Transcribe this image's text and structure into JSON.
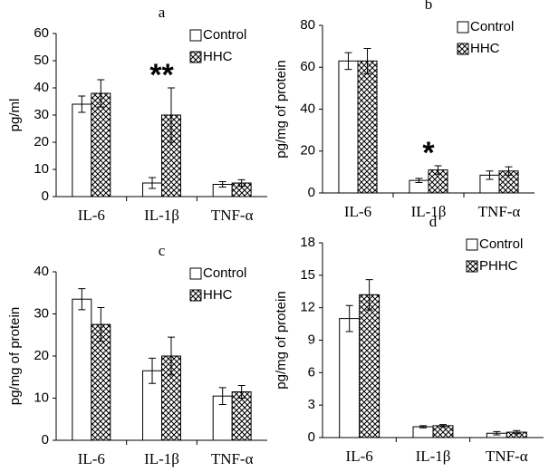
{
  "chart_data": [
    {
      "type": "bar",
      "title": "a",
      "y_label": "pg/ml",
      "categories": [
        "IL-6",
        "IL-1β",
        "TNF-α"
      ],
      "series": [
        {
          "name": "Control",
          "color": "#ffffff",
          "values": [
            34,
            5,
            4.5
          ],
          "errors": [
            3,
            2,
            1
          ]
        },
        {
          "name": "HHC",
          "color": "#ffffff",
          "pattern": "crosshatch",
          "values": [
            38,
            30,
            5
          ],
          "errors": [
            5,
            10,
            1.2
          ]
        }
      ],
      "ylim": [
        0,
        60
      ],
      "yticks": [
        0,
        10,
        20,
        30,
        40,
        50,
        60
      ],
      "annotations": [
        {
          "text": "**",
          "category": "IL-1β"
        }
      ]
    },
    {
      "type": "bar",
      "title": "b",
      "y_label": "pg/mg of protein",
      "categories": [
        "IL-6",
        "IL-1β",
        "TNF-α"
      ],
      "series": [
        {
          "name": "Control",
          "color": "#ffffff",
          "values": [
            63,
            6,
            8.5
          ],
          "errors": [
            4,
            1,
            2
          ]
        },
        {
          "name": "HHC",
          "color": "#ffffff",
          "pattern": "crosshatch",
          "values": [
            63,
            11,
            10.5
          ],
          "errors": [
            6,
            2,
            2
          ]
        }
      ],
      "ylim": [
        0,
        80
      ],
      "yticks": [
        0,
        20,
        40,
        60,
        80
      ],
      "annotations": [
        {
          "text": "*",
          "category": "IL-1β"
        }
      ]
    },
    {
      "type": "bar",
      "title": "c",
      "y_label": "pg/mg of protein",
      "categories": [
        "IL-6",
        "IL-1β",
        "TNF-α"
      ],
      "series": [
        {
          "name": "Control",
          "color": "#ffffff",
          "values": [
            33.5,
            16.5,
            10.5
          ],
          "errors": [
            2.5,
            3,
            2
          ]
        },
        {
          "name": "HHC",
          "color": "#ffffff",
          "pattern": "crosshatch",
          "values": [
            27.5,
            20,
            11.5
          ],
          "errors": [
            4,
            4.5,
            1.5
          ]
        }
      ],
      "ylim": [
        0,
        40
      ],
      "yticks": [
        0,
        10,
        20,
        30,
        40
      ]
    },
    {
      "type": "bar",
      "title": "d",
      "y_label": "pg/mg of protein",
      "categories": [
        "IL-6",
        "IL-1β",
        "TNF-α"
      ],
      "series": [
        {
          "name": "Control",
          "color": "#ffffff",
          "values": [
            11,
            1,
            0.4
          ],
          "errors": [
            1.2,
            0.1,
            0.15
          ]
        },
        {
          "name": "PHHC",
          "color": "#ffffff",
          "pattern": "crosshatch",
          "values": [
            13.2,
            1.1,
            0.5
          ],
          "errors": [
            1.4,
            0.1,
            0.15
          ]
        }
      ],
      "ylim": [
        0,
        18
      ],
      "yticks": [
        0,
        3,
        6,
        9,
        12,
        15,
        18
      ]
    }
  ]
}
